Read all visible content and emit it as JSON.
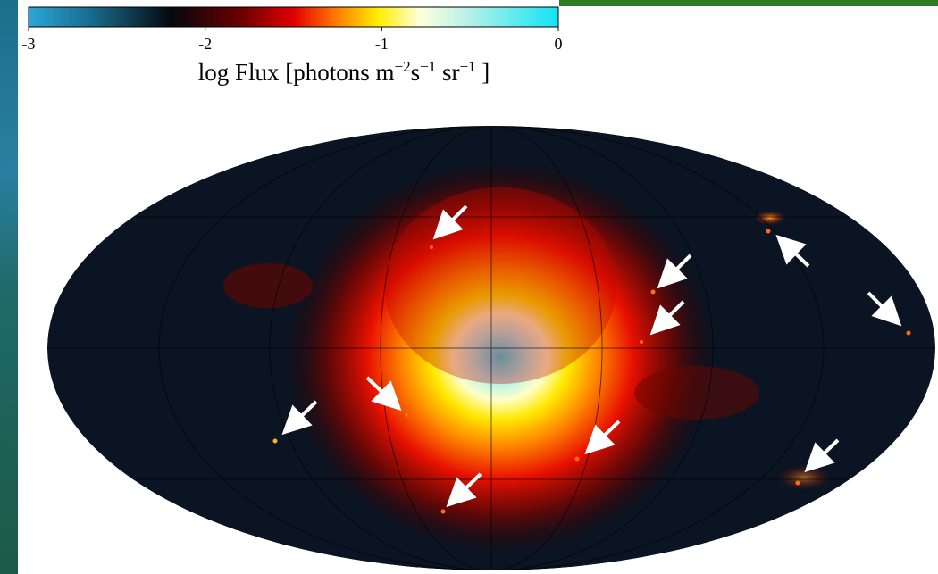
{
  "colorbar": {
    "lim": [
      -3,
      0
    ],
    "ticks": [
      -3,
      -2,
      -1,
      0
    ],
    "label": [
      "log Flux [photons m",
      "−2",
      "s",
      "−1",
      " sr",
      "−1",
      " ]"
    ]
  }
}
